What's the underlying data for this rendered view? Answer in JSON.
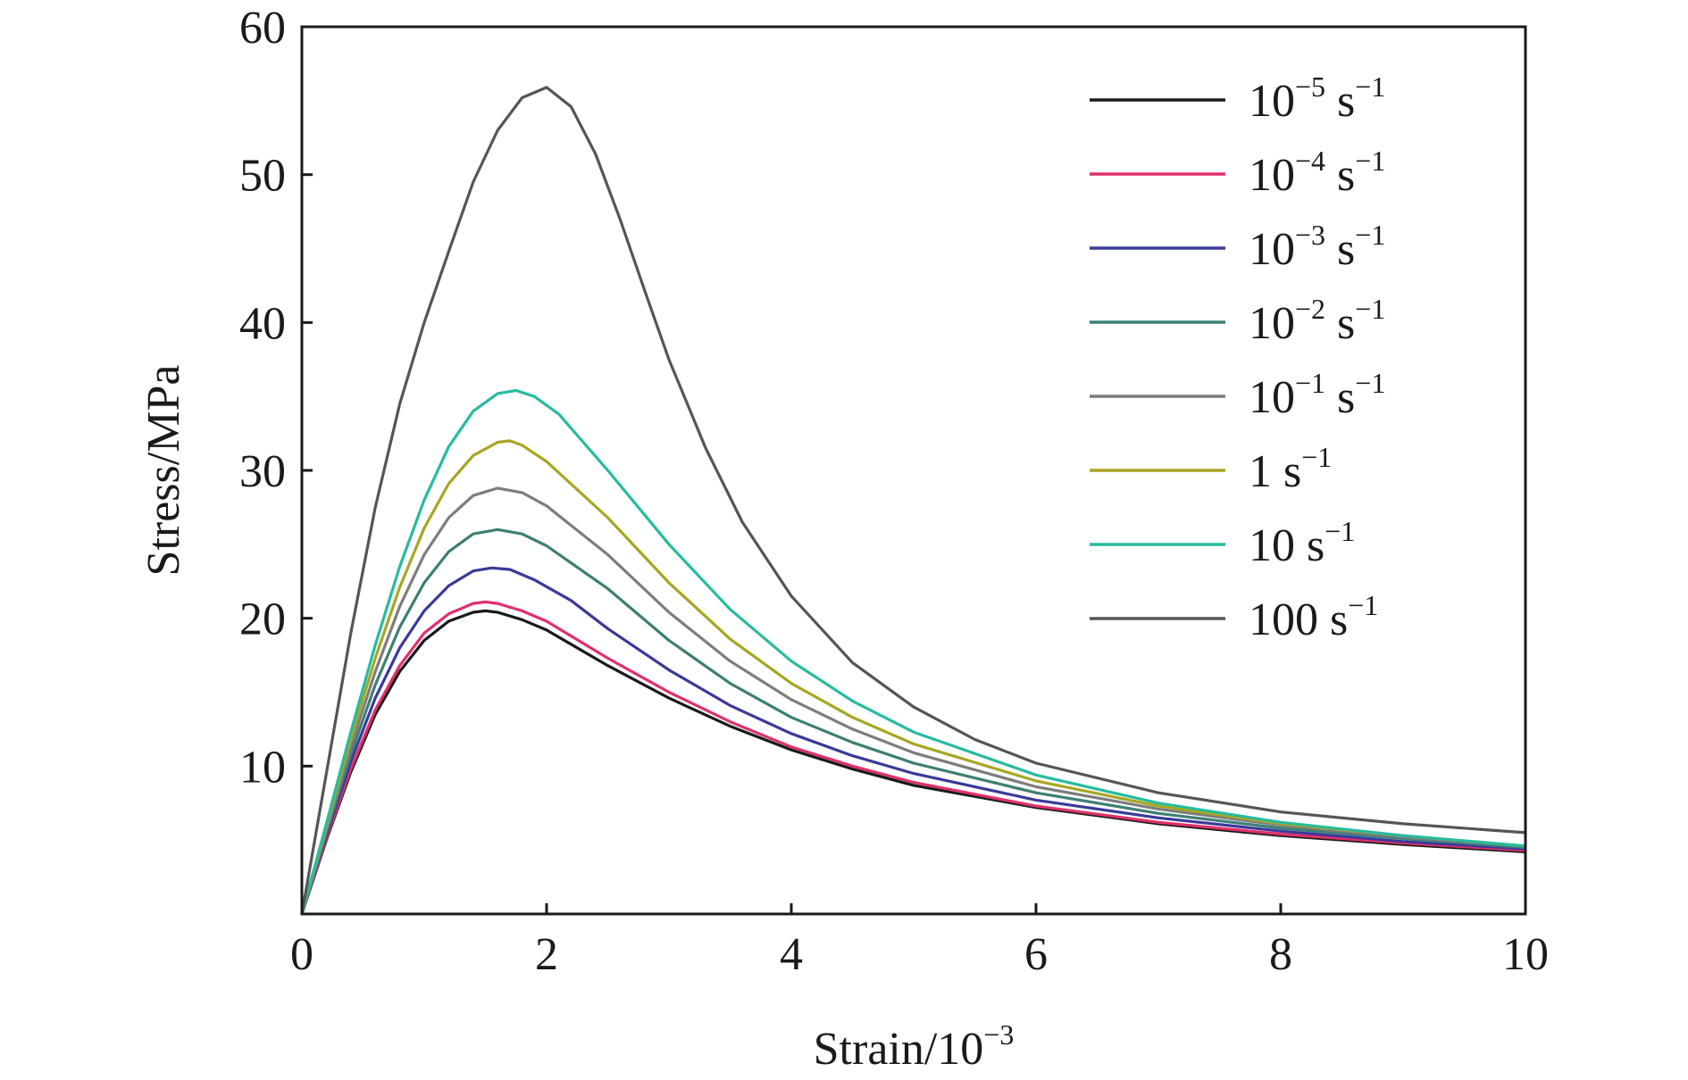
{
  "chart_data": {
    "type": "line",
    "xlabel": "Strain/10",
    "xlabel_exponent": "−3",
    "ylabel": "Stress/MPa",
    "xlim": [
      0,
      10
    ],
    "ylim": [
      0,
      60
    ],
    "x_ticks": [
      0,
      2,
      4,
      6,
      8,
      10
    ],
    "x_tick_labels": [
      "0",
      "2",
      "4",
      "6",
      "8",
      "10"
    ],
    "y_ticks": [
      10,
      20,
      30,
      40,
      50,
      60
    ],
    "y_tick_labels": [
      "10",
      "20",
      "30",
      "40",
      "50",
      "60"
    ],
    "grid": false,
    "legend_position": "top-right",
    "series": [
      {
        "name": "10−5 s−1",
        "label_base": "10",
        "label_exp": "−5",
        "label_unit": " s",
        "label_unit_exp": "−1",
        "color": "#1a1a1a",
        "points": [
          [
            0,
            0
          ],
          [
            0.2,
            5
          ],
          [
            0.4,
            9.6
          ],
          [
            0.6,
            13.5
          ],
          [
            0.8,
            16.4
          ],
          [
            1.0,
            18.5
          ],
          [
            1.2,
            19.8
          ],
          [
            1.4,
            20.4
          ],
          [
            1.5,
            20.5
          ],
          [
            1.6,
            20.4
          ],
          [
            1.8,
            19.9
          ],
          [
            2.0,
            19.2
          ],
          [
            2.5,
            16.8
          ],
          [
            3.0,
            14.6
          ],
          [
            3.5,
            12.7
          ],
          [
            4.0,
            11.1
          ],
          [
            4.5,
            9.8
          ],
          [
            5.0,
            8.7
          ],
          [
            6.0,
            7.2
          ],
          [
            7.0,
            6.1
          ],
          [
            8.0,
            5.3
          ],
          [
            9.0,
            4.7
          ],
          [
            10.0,
            4.2
          ]
        ]
      },
      {
        "name": "10−4 s−1",
        "label_base": "10",
        "label_exp": "−4",
        "label_unit": " s",
        "label_unit_exp": "−1",
        "color": "#e0306a",
        "points": [
          [
            0,
            0
          ],
          [
            0.2,
            5.1
          ],
          [
            0.4,
            9.8
          ],
          [
            0.6,
            13.8
          ],
          [
            0.8,
            16.8
          ],
          [
            1.0,
            19.0
          ],
          [
            1.2,
            20.3
          ],
          [
            1.4,
            21.0
          ],
          [
            1.5,
            21.1
          ],
          [
            1.6,
            21.0
          ],
          [
            1.8,
            20.5
          ],
          [
            2.0,
            19.8
          ],
          [
            2.5,
            17.3
          ],
          [
            3.0,
            15.0
          ],
          [
            3.5,
            13.0
          ],
          [
            4.0,
            11.3
          ],
          [
            4.5,
            10.0
          ],
          [
            5.0,
            8.9
          ],
          [
            6.0,
            7.3
          ],
          [
            7.0,
            6.2
          ],
          [
            8.0,
            5.4
          ],
          [
            9.0,
            4.8
          ],
          [
            10.0,
            4.3
          ]
        ]
      },
      {
        "name": "10−3 s−1",
        "label_base": "10",
        "label_exp": "−3",
        "label_unit": " s",
        "label_unit_exp": "−1",
        "color": "#3a3a9a",
        "points": [
          [
            0,
            0
          ],
          [
            0.2,
            5.3
          ],
          [
            0.4,
            10.3
          ],
          [
            0.6,
            14.6
          ],
          [
            0.8,
            18.0
          ],
          [
            1.0,
            20.5
          ],
          [
            1.2,
            22.2
          ],
          [
            1.4,
            23.2
          ],
          [
            1.55,
            23.4
          ],
          [
            1.7,
            23.3
          ],
          [
            1.9,
            22.6
          ],
          [
            2.2,
            21.2
          ],
          [
            2.5,
            19.3
          ],
          [
            3.0,
            16.5
          ],
          [
            3.5,
            14.1
          ],
          [
            4.0,
            12.2
          ],
          [
            4.5,
            10.7
          ],
          [
            5.0,
            9.5
          ],
          [
            6.0,
            7.7
          ],
          [
            7.0,
            6.5
          ],
          [
            8.0,
            5.6
          ],
          [
            9.0,
            4.9
          ],
          [
            10.0,
            4.4
          ]
        ]
      },
      {
        "name": "10−2 s−1",
        "label_base": "10",
        "label_exp": "−2",
        "label_unit": " s",
        "label_unit_exp": "−1",
        "color": "#3d7f75",
        "points": [
          [
            0,
            0
          ],
          [
            0.2,
            5.5
          ],
          [
            0.4,
            10.8
          ],
          [
            0.6,
            15.5
          ],
          [
            0.8,
            19.4
          ],
          [
            1.0,
            22.4
          ],
          [
            1.2,
            24.5
          ],
          [
            1.4,
            25.7
          ],
          [
            1.6,
            26.0
          ],
          [
            1.8,
            25.7
          ],
          [
            2.0,
            24.9
          ],
          [
            2.5,
            22.0
          ],
          [
            3.0,
            18.5
          ],
          [
            3.5,
            15.6
          ],
          [
            4.0,
            13.3
          ],
          [
            4.5,
            11.6
          ],
          [
            5.0,
            10.2
          ],
          [
            6.0,
            8.2
          ],
          [
            7.0,
            6.8
          ],
          [
            8.0,
            5.8
          ],
          [
            9.0,
            5.1
          ],
          [
            10.0,
            4.5
          ]
        ]
      },
      {
        "name": "10−1 s−1",
        "label_base": "10",
        "label_exp": "−1",
        "label_unit": " s",
        "label_unit_exp": "−1",
        "color": "#7d7d7d",
        "points": [
          [
            0,
            0
          ],
          [
            0.2,
            5.7
          ],
          [
            0.4,
            11.3
          ],
          [
            0.6,
            16.4
          ],
          [
            0.8,
            20.8
          ],
          [
            1.0,
            24.3
          ],
          [
            1.2,
            26.8
          ],
          [
            1.4,
            28.3
          ],
          [
            1.6,
            28.8
          ],
          [
            1.8,
            28.5
          ],
          [
            2.0,
            27.6
          ],
          [
            2.5,
            24.3
          ],
          [
            3.0,
            20.4
          ],
          [
            3.5,
            17.1
          ],
          [
            4.0,
            14.5
          ],
          [
            4.5,
            12.5
          ],
          [
            5.0,
            10.9
          ],
          [
            6.0,
            8.6
          ],
          [
            7.0,
            7.1
          ],
          [
            8.0,
            6.0
          ],
          [
            9.0,
            5.2
          ],
          [
            10.0,
            4.6
          ]
        ]
      },
      {
        "name": "1 s−1",
        "label_base": "1",
        "label_exp": "",
        "label_unit": " s",
        "label_unit_exp": "−1",
        "color": "#a8a622",
        "points": [
          [
            0,
            0
          ],
          [
            0.2,
            5.9
          ],
          [
            0.4,
            11.8
          ],
          [
            0.6,
            17.3
          ],
          [
            0.8,
            22.1
          ],
          [
            1.0,
            26.1
          ],
          [
            1.2,
            29.1
          ],
          [
            1.4,
            31.0
          ],
          [
            1.6,
            31.9
          ],
          [
            1.7,
            32.0
          ],
          [
            1.8,
            31.7
          ],
          [
            2.0,
            30.6
          ],
          [
            2.5,
            26.8
          ],
          [
            3.0,
            22.4
          ],
          [
            3.5,
            18.6
          ],
          [
            4.0,
            15.6
          ],
          [
            4.5,
            13.3
          ],
          [
            5.0,
            11.5
          ],
          [
            6.0,
            9.0
          ],
          [
            7.0,
            7.3
          ],
          [
            8.0,
            6.1
          ],
          [
            9.0,
            5.3
          ],
          [
            10.0,
            4.6
          ]
        ]
      },
      {
        "name": "10 s−1",
        "label_base": "10",
        "label_exp": "",
        "label_unit": " s",
        "label_unit_exp": "−1",
        "color": "#27bba0",
        "points": [
          [
            0,
            0
          ],
          [
            0.2,
            6.1
          ],
          [
            0.4,
            12.3
          ],
          [
            0.6,
            18.2
          ],
          [
            0.8,
            23.5
          ],
          [
            1.0,
            28.0
          ],
          [
            1.2,
            31.6
          ],
          [
            1.4,
            34.0
          ],
          [
            1.6,
            35.2
          ],
          [
            1.75,
            35.4
          ],
          [
            1.9,
            35.0
          ],
          [
            2.1,
            33.8
          ],
          [
            2.5,
            30.0
          ],
          [
            3.0,
            25.0
          ],
          [
            3.5,
            20.6
          ],
          [
            4.0,
            17.1
          ],
          [
            4.5,
            14.4
          ],
          [
            5.0,
            12.3
          ],
          [
            6.0,
            9.4
          ],
          [
            7.0,
            7.5
          ],
          [
            8.0,
            6.2
          ],
          [
            9.0,
            5.3
          ],
          [
            10.0,
            4.6
          ]
        ]
      },
      {
        "name": "100 s−1",
        "label_base": "100",
        "label_exp": "",
        "label_unit": " s",
        "label_unit_exp": "−1",
        "color": "#555555",
        "points": [
          [
            0,
            0
          ],
          [
            0.2,
            9.5
          ],
          [
            0.4,
            19.0
          ],
          [
            0.6,
            27.5
          ],
          [
            0.8,
            34.5
          ],
          [
            1.0,
            40.0
          ],
          [
            1.2,
            44.8
          ],
          [
            1.4,
            49.5
          ],
          [
            1.6,
            53.0
          ],
          [
            1.8,
            55.2
          ],
          [
            2.0,
            55.9
          ],
          [
            2.2,
            54.6
          ],
          [
            2.4,
            51.4
          ],
          [
            2.6,
            47.0
          ],
          [
            2.8,
            42.2
          ],
          [
            3.0,
            37.5
          ],
          [
            3.3,
            31.5
          ],
          [
            3.6,
            26.5
          ],
          [
            4.0,
            21.5
          ],
          [
            4.5,
            17.0
          ],
          [
            5.0,
            14.0
          ],
          [
            5.5,
            11.8
          ],
          [
            6.0,
            10.2
          ],
          [
            7.0,
            8.2
          ],
          [
            8.0,
            6.9
          ],
          [
            9.0,
            6.1
          ],
          [
            10.0,
            5.5
          ]
        ]
      }
    ]
  }
}
